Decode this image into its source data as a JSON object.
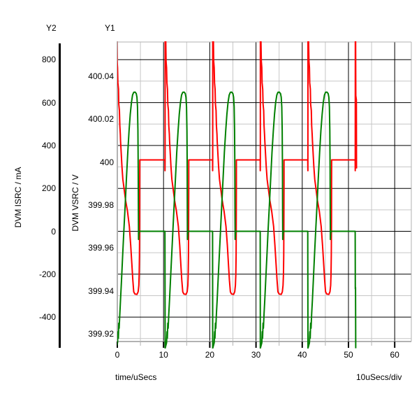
{
  "labels": {
    "y2_header": "Y2",
    "y1_header": "Y1",
    "isrc_axis_title": "DVM ISRC / mA",
    "vsrc_axis_title": "DVM VSRC / V",
    "x_axis_title": "time/uSecs",
    "x_axis_scale": "10uSecs/div"
  },
  "chart_data": {
    "type": "line",
    "title": "",
    "grid": {
      "major_color": "#000000",
      "minor_color": "#c6c6c6",
      "border_color": "#b2b2b2"
    },
    "x_axis": {
      "label": "time/uSecs",
      "scale_note": "10uSecs/div",
      "units": "uSecs",
      "range": [
        0,
        63.6
      ],
      "major_ticks": [
        {
          "v": 0,
          "label": "0"
        },
        {
          "v": 10,
          "label": "10"
        },
        {
          "v": 20,
          "label": "20"
        },
        {
          "v": 30,
          "label": "30"
        },
        {
          "v": 40,
          "label": "40"
        },
        {
          "v": 50,
          "label": "50"
        },
        {
          "v": 60,
          "label": "60"
        }
      ],
      "minor_ticks": [
        5,
        15,
        25,
        35,
        45,
        55
      ]
    },
    "y_axes": [
      {
        "id": "Y2",
        "title": "DVM ISRC / mA",
        "units": "mA",
        "range": [
          -514,
          882
        ],
        "grid_source": true,
        "ticks": [
          {
            "v": 800,
            "label": "800"
          },
          {
            "v": 600,
            "label": "600"
          },
          {
            "v": 400,
            "label": "400"
          },
          {
            "v": 200,
            "label": "200"
          },
          {
            "v": 0,
            "label": "0"
          },
          {
            "v": -200,
            "label": "-200"
          },
          {
            "v": -400,
            "label": "-400"
          }
        ],
        "minor_gridlines": [
          700,
          500,
          300,
          100,
          -100,
          -300,
          -500
        ]
      },
      {
        "id": "Y1",
        "title": "DVM VSRC / V",
        "units": "V",
        "range": [
          399.916,
          400.056
        ],
        "grid_source": false,
        "ticks": [
          {
            "v": 400.04,
            "label": "400.04"
          },
          {
            "v": 400.02,
            "label": "400.02"
          },
          {
            "v": 400,
            "label": "400"
          },
          {
            "v": 399.98,
            "label": "399.98"
          },
          {
            "v": 399.96,
            "label": "399.96"
          },
          {
            "v": 399.94,
            "label": "399.94"
          },
          {
            "v": 399.92,
            "label": "399.92"
          }
        ]
      }
    ],
    "series": [
      {
        "name": "DVM VSRC",
        "axis": "Y1",
        "color": "#ff0000",
        "period_us": 10.3,
        "cycle_start_times": [
          -0.3,
          10.3,
          20.6,
          30.9,
          41.2
        ],
        "final_event_time": 51.45,
        "flat_level": 400.001,
        "trough": 399.938,
        "spike_peak_clipped": 400.095,
        "cycle_points": [
          [
            0.0,
            400.001
          ],
          [
            0.02,
            399.996
          ],
          [
            0.03,
            400.001
          ],
          [
            0.05,
            400.095
          ],
          [
            0.18,
            400.056
          ],
          [
            0.25,
            400.047
          ],
          [
            0.35,
            400.044
          ],
          [
            0.42,
            400.037
          ],
          [
            0.55,
            400.034
          ],
          [
            0.62,
            400.027
          ],
          [
            0.76,
            400.024
          ],
          [
            0.84,
            400.017
          ],
          [
            0.95,
            400.013
          ],
          [
            1.0,
            400.01
          ],
          [
            1.15,
            400.004
          ],
          [
            1.3,
            399.998
          ],
          [
            1.5,
            399.992
          ],
          [
            1.74,
            399.988
          ],
          [
            2.1,
            399.982
          ],
          [
            2.5,
            399.977
          ],
          [
            2.9,
            399.97
          ],
          [
            3.2,
            399.961
          ],
          [
            3.45,
            399.952
          ],
          [
            3.65,
            399.945
          ],
          [
            3.85,
            399.9395
          ],
          [
            4.1,
            399.9385
          ],
          [
            4.55,
            399.9383
          ],
          [
            4.8,
            399.9395
          ],
          [
            4.95,
            399.9425
          ],
          [
            5.03,
            399.9475
          ],
          [
            5.09,
            399.9565
          ],
          [
            5.13,
            399.972
          ],
          [
            5.15,
            399.99
          ],
          [
            5.16,
            400.001
          ],
          [
            5.3,
            400.001
          ]
        ],
        "final_points": [
          [
            0.0,
            400.001
          ],
          [
            0.02,
            399.996
          ],
          [
            0.04,
            400.095
          ],
          [
            0.1,
            400.05
          ],
          [
            0.13,
            400.031
          ],
          [
            0.25,
            400.029
          ],
          [
            0.28,
            399.997
          ]
        ]
      },
      {
        "name": "DVM ISRC",
        "axis": "Y2",
        "color": "#008000",
        "period_us": 10.3,
        "cycle_start_times": [
          -0.3,
          10.3,
          20.6,
          30.9,
          41.2
        ],
        "final_event_time": 51.45,
        "flat_level": 0,
        "peak": 649,
        "drop_min_clipped": -545,
        "cycle_points": [
          [
            0.0,
            0
          ],
          [
            0.04,
            -545
          ],
          [
            0.35,
            -520
          ],
          [
            0.45,
            -468
          ],
          [
            0.52,
            -498
          ],
          [
            0.62,
            -428
          ],
          [
            0.7,
            -452
          ],
          [
            0.84,
            -385
          ],
          [
            1.0,
            -318
          ],
          [
            1.2,
            -228
          ],
          [
            1.45,
            -115
          ],
          [
            1.72,
            5
          ],
          [
            2.0,
            125
          ],
          [
            2.28,
            250
          ],
          [
            2.56,
            368
          ],
          [
            2.84,
            468
          ],
          [
            3.1,
            545
          ],
          [
            3.35,
            600
          ],
          [
            3.6,
            635
          ],
          [
            3.85,
            648
          ],
          [
            4.15,
            649
          ],
          [
            4.4,
            642
          ],
          [
            4.55,
            625
          ],
          [
            4.67,
            580
          ],
          [
            4.76,
            470
          ],
          [
            4.82,
            290
          ],
          [
            4.86,
            80
          ],
          [
            4.89,
            -38
          ],
          [
            4.94,
            -15
          ],
          [
            5.0,
            0
          ]
        ],
        "final_points": [
          [
            0.0,
            0
          ],
          [
            0.03,
            -268
          ],
          [
            0.08,
            -262
          ],
          [
            0.12,
            -545
          ]
        ]
      }
    ]
  }
}
